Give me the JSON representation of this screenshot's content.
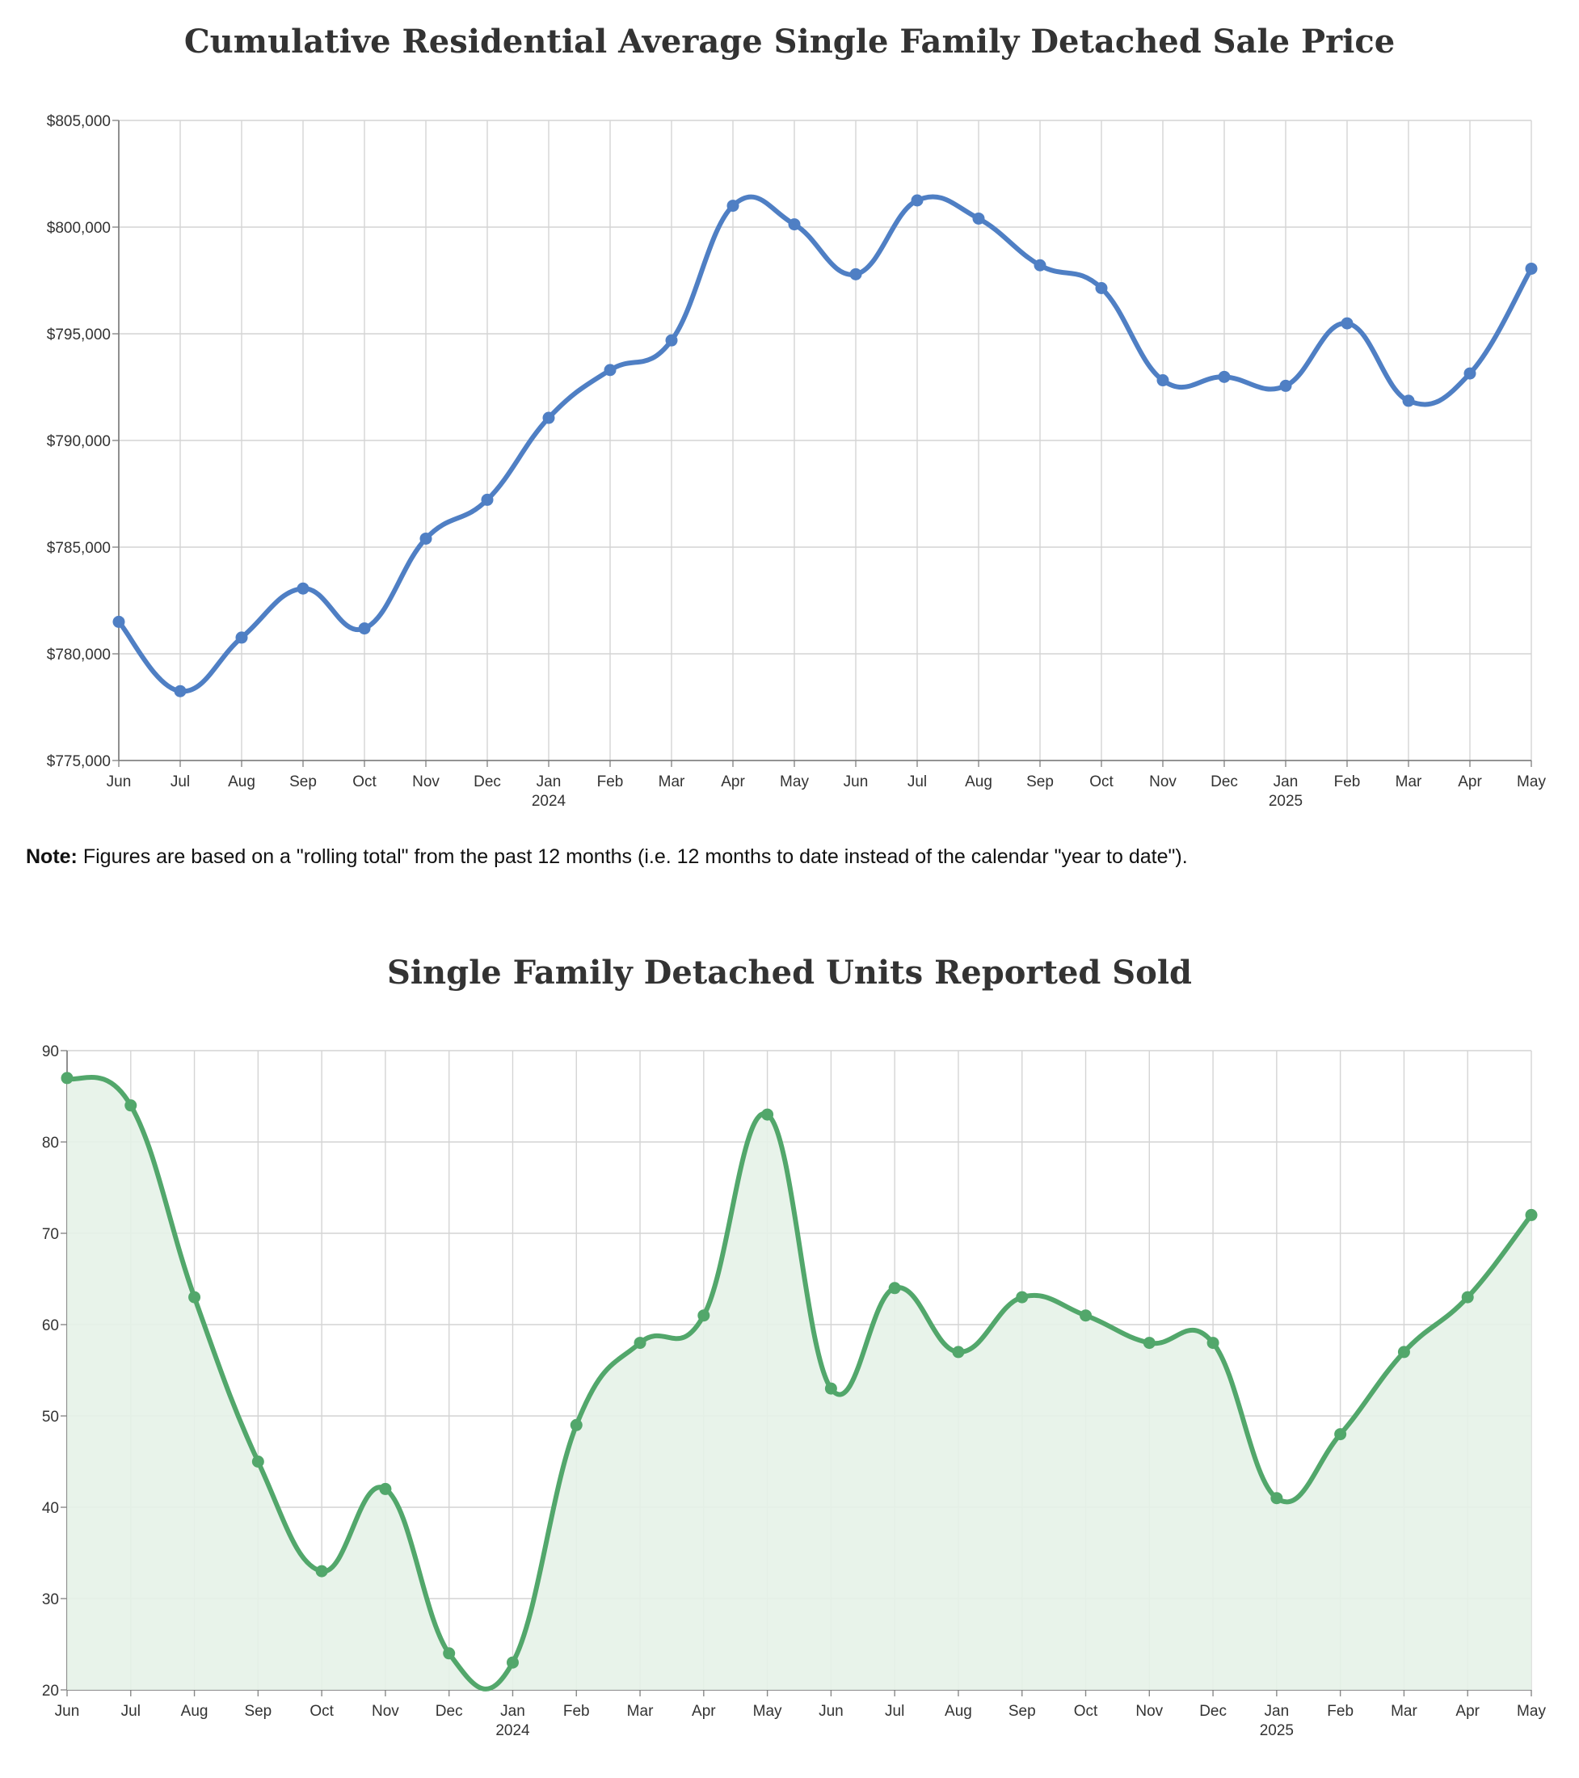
{
  "chart_data": [
    {
      "type": "line",
      "title": "Cumulative Residential Average Single Family Detached Sale Price",
      "categories": [
        "Jun",
        "Jul",
        "Aug",
        "Sep",
        "Oct",
        "Nov",
        "Dec",
        "Jan",
        "Feb",
        "Mar",
        "Apr",
        "May",
        "Jun",
        "Jul",
        "Aug",
        "Sep",
        "Oct",
        "Nov",
        "Dec",
        "Jan",
        "Feb",
        "Mar",
        "Apr",
        "May"
      ],
      "year_labels": {
        "7": "2024",
        "19": "2025"
      },
      "values": [
        781500,
        778250,
        780760,
        783060,
        781190,
        785400,
        787220,
        791060,
        793300,
        794690,
        801000,
        800130,
        797790,
        801250,
        800400,
        798210,
        797140,
        792820,
        792980,
        792560,
        795490,
        791860,
        793140,
        798050
      ],
      "ylim": [
        775000,
        805000
      ],
      "yticks": [
        775000,
        780000,
        785000,
        790000,
        795000,
        800000,
        805000
      ],
      "ytick_labels": [
        "$775,000",
        "$780,000",
        "$785,000",
        "$790,000",
        "$795,000",
        "$800,000",
        "$805,000"
      ],
      "color": "#4f7fc4",
      "fill": false,
      "grid": true
    },
    {
      "type": "area",
      "title": "Single Family Detached Units Reported Sold",
      "categories": [
        "Jun",
        "Jul",
        "Aug",
        "Sep",
        "Oct",
        "Nov",
        "Dec",
        "Jan",
        "Feb",
        "Mar",
        "Apr",
        "May",
        "Jun",
        "Jul",
        "Aug",
        "Sep",
        "Oct",
        "Nov",
        "Dec",
        "Jan",
        "Feb",
        "Mar",
        "Apr",
        "May"
      ],
      "year_labels": {
        "7": "2024",
        "19": "2025"
      },
      "values": [
        87,
        84,
        63,
        45,
        33,
        42,
        24,
        23,
        49,
        58,
        61,
        83,
        53,
        64,
        57,
        63,
        61,
        58,
        58,
        41,
        48,
        57,
        63,
        72
      ],
      "ylim": [
        20,
        90
      ],
      "yticks": [
        20,
        30,
        40,
        50,
        60,
        70,
        80,
        90
      ],
      "ytick_labels": [
        "20",
        "30",
        "40",
        "50",
        "60",
        "70",
        "80",
        "90"
      ],
      "color": "#52a76b",
      "fill_color": "#e5f2e8",
      "fill": true,
      "grid": true
    }
  ],
  "note": {
    "label": "Note:",
    "text": " Figures are based on a \"rolling total\" from the past 12 months (i.e. 12 months to date instead of the calendar \"year to date\")."
  }
}
